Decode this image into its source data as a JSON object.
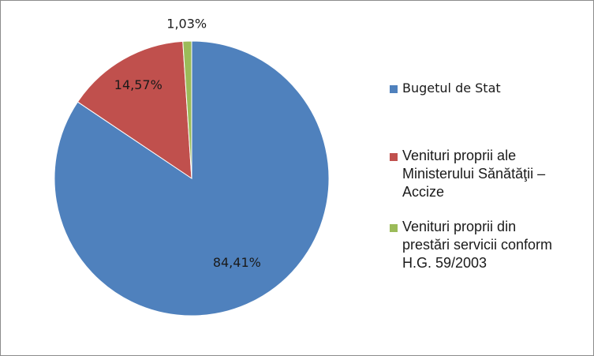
{
  "chart_data": {
    "type": "pie",
    "title": "",
    "slices": [
      {
        "label": "Bugetul de Stat",
        "value": 84.41,
        "display": "84,41%",
        "color": "#4f81bd"
      },
      {
        "label": "Venituri proprii ale Ministerului Sănătăţii – Accize",
        "value": 14.57,
        "display": "14,57%",
        "color": "#c0504d"
      },
      {
        "label": "Venituri proprii din prestări servicii conform H.G. 59/2003",
        "value": 1.03,
        "display": "1,03%",
        "color": "#9bbb59"
      }
    ],
    "legend_position": "right"
  },
  "legend": {
    "items": [
      {
        "lines": [
          "Bugetul de Stat"
        ]
      },
      {
        "lines": [
          "Venituri proprii ale",
          "Ministerului Sănătăţii –",
          "Accize"
        ]
      },
      {
        "lines": [
          "Venituri proprii din",
          "prestări servicii conform",
          "H.G. 59/2003"
        ]
      }
    ]
  }
}
